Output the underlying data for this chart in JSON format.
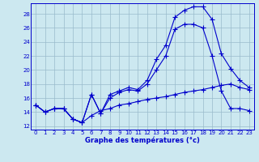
{
  "xlabel": "Graphe des températures (°c)",
  "xlim": [
    -0.5,
    23.5
  ],
  "ylim": [
    11.5,
    29.5
  ],
  "yticks": [
    12,
    14,
    16,
    18,
    20,
    22,
    24,
    26,
    28
  ],
  "xticks": [
    0,
    1,
    2,
    3,
    4,
    5,
    6,
    7,
    8,
    9,
    10,
    11,
    12,
    13,
    14,
    15,
    16,
    17,
    18,
    19,
    20,
    21,
    22,
    23
  ],
  "bg_color": "#cce8f0",
  "line_color": "#0000cc",
  "grid_color": "#99bbcc",
  "series1_x": [
    0,
    1,
    2,
    3,
    4,
    5,
    6,
    7,
    8,
    9,
    10,
    11,
    12,
    13,
    14,
    15,
    16,
    17,
    18,
    19,
    20,
    21,
    22,
    23
  ],
  "series1_y": [
    15.0,
    14.0,
    14.5,
    14.5,
    13.0,
    12.5,
    16.5,
    13.8,
    16.5,
    17.0,
    17.5,
    17.2,
    18.5,
    21.5,
    23.5,
    27.5,
    28.5,
    29.0,
    29.0,
    27.2,
    22.3,
    20.2,
    18.5,
    17.5
  ],
  "series2_x": [
    0,
    1,
    2,
    3,
    4,
    5,
    6,
    7,
    8,
    9,
    10,
    11,
    12,
    13,
    14,
    15,
    16,
    17,
    18,
    19,
    20,
    21,
    22,
    23
  ],
  "series2_y": [
    15.0,
    14.0,
    14.5,
    14.5,
    13.0,
    12.5,
    16.5,
    13.8,
    16.0,
    16.8,
    17.2,
    17.0,
    18.0,
    20.0,
    22.0,
    25.8,
    26.5,
    26.5,
    26.0,
    22.0,
    17.0,
    14.5,
    14.5,
    14.2
  ],
  "series3_x": [
    0,
    1,
    2,
    3,
    4,
    5,
    6,
    7,
    8,
    9,
    10,
    11,
    12,
    13,
    14,
    15,
    16,
    17,
    18,
    19,
    20,
    21,
    22,
    23
  ],
  "series3_y": [
    15.0,
    14.0,
    14.5,
    14.5,
    13.0,
    12.5,
    13.5,
    14.2,
    14.5,
    15.0,
    15.2,
    15.5,
    15.8,
    16.0,
    16.2,
    16.5,
    16.8,
    17.0,
    17.2,
    17.5,
    17.8,
    18.0,
    17.5,
    17.2
  ],
  "xlabel_fontsize": 6.0,
  "tick_fontsize": 5.0,
  "marker_size": 2.0
}
